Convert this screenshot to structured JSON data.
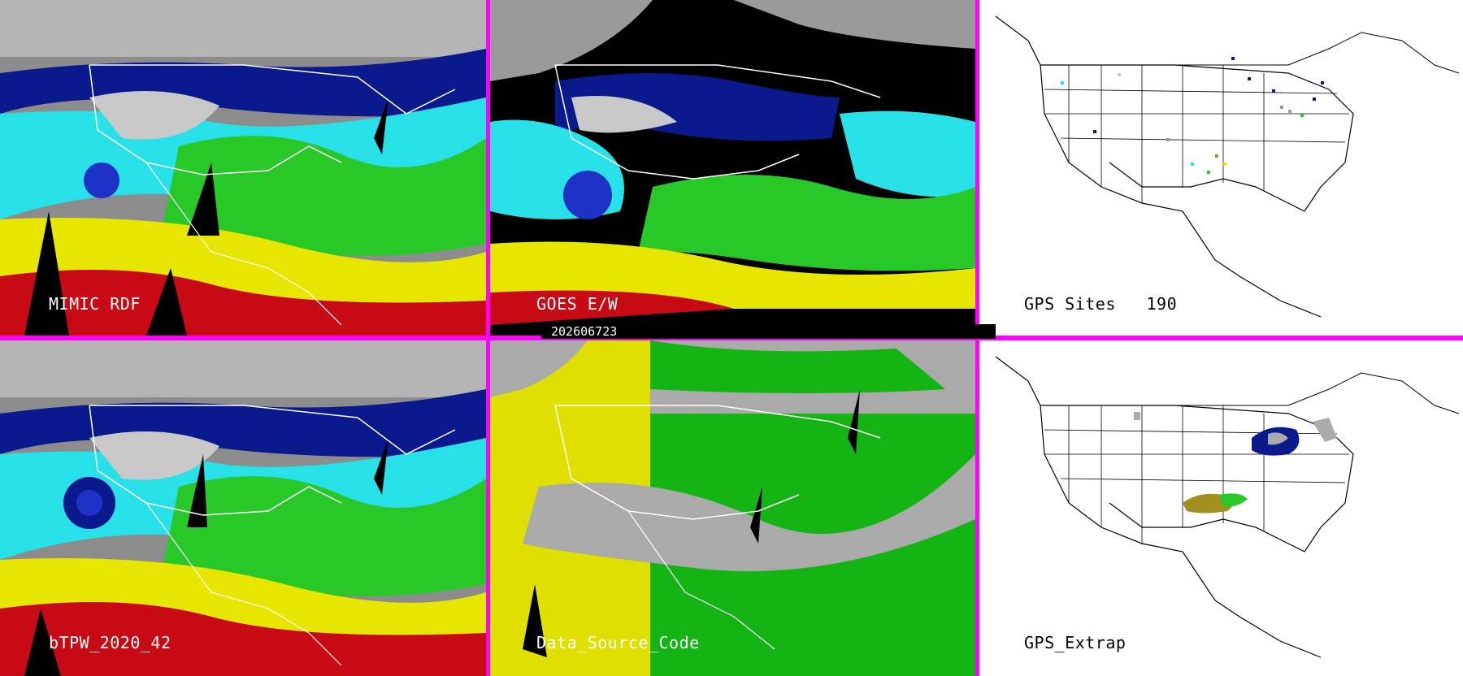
{
  "panels": {
    "mimic": {
      "label": "MIMIC RDF"
    },
    "goes": {
      "label": "GOES E/W"
    },
    "gps_sites": {
      "label": "GPS Sites",
      "count": "190"
    },
    "btpw": {
      "label": "bTPW_2020_42"
    },
    "source": {
      "label": "Data_Source_Code"
    },
    "gps_extrap": {
      "label": "GPS_Extrap"
    }
  },
  "timestamp": "202606723",
  "colors": {
    "separator": "#ff00ff",
    "ocean_gray": "#9a9a9a",
    "navy": "#0a1a8c",
    "blue": "#1e32c8",
    "cyan": "#28e0e8",
    "green": "#28c828",
    "olive": "#a09020",
    "yellow": "#e6e600",
    "red": "#c80a14",
    "black": "#000000",
    "source_yellow": "#e0e000",
    "source_green": "#14b414",
    "source_gray": "#aaaaaa"
  }
}
